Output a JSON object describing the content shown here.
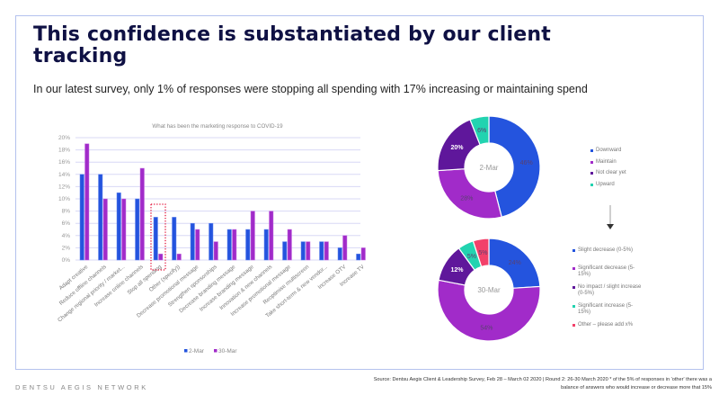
{
  "slide": {
    "title": "This confidence is substantiated by our client tracking",
    "subtitle": "In our latest survey, only 1% of responses were stopping all spending with 17% increasing or maintaining spend",
    "brand": "DENTSU AEGIS NETWORK",
    "source_line1": "Source: Dentsu Aegis Client & Leadership Survey, Feb 28 – March 02 2020 | Round 2: 26-30 March 2020 * of the 5% of responses in 'other' there was a",
    "source_line2": "balance of answers who would increase or decrease more that 15%",
    "highlight_category": "Stop all spending"
  },
  "colors": {
    "blue": "#2454de",
    "purple": "#a12bc9",
    "dark_purple": "#5f179b",
    "teal": "#22d3b0",
    "pink": "#f2416a",
    "grid": "#d8d8f6",
    "highlight": "#e3173d"
  },
  "chart_data": [
    {
      "type": "bar",
      "title": "What has been the marketing response to COVID-19",
      "xlabel": "",
      "ylabel": "",
      "ylim": [
        0,
        20
      ],
      "yticks": [
        "0%",
        "2%",
        "4%",
        "6%",
        "8%",
        "10%",
        "12%",
        "14%",
        "16%",
        "18%",
        "20%"
      ],
      "grid": true,
      "legend_position": "bottom",
      "categories": [
        "Adapt creative",
        "Reduce offline channels",
        "Change regional priority / market...",
        "Increase online channels",
        "Stop all spending",
        "Other (specify))",
        "Decrease promotional message",
        "Strengthen sponsorships",
        "Decrease branding message",
        "Increase branding message",
        "Innovation & new channels",
        "Increase promotional message",
        "Reoptimise multiscreen",
        "Take short-term & new vendor...",
        "Increase OTV",
        "Increase TV"
      ],
      "series": [
        {
          "name": "2-Mar",
          "color": "#2454de",
          "values": [
            14,
            14,
            11,
            10,
            7,
            7,
            6,
            6,
            5,
            5,
            5,
            3,
            3,
            3,
            2,
            1
          ]
        },
        {
          "name": "30-Mar",
          "color": "#a12bc9",
          "values": [
            19,
            10,
            10,
            15,
            1,
            1,
            5,
            3,
            5,
            8,
            8,
            5,
            3,
            3,
            4,
            2
          ]
        }
      ]
    },
    {
      "type": "pie",
      "center_label": "2-Mar",
      "labels": [
        "Downward",
        "Maintain",
        "Not clear yet",
        "Upward"
      ],
      "values": [
        46,
        28,
        20,
        6
      ],
      "value_labels": [
        "46%",
        "28%",
        "20%",
        "6%"
      ],
      "colors": [
        "#2454de",
        "#a12bc9",
        "#5f179b",
        "#22d3b0"
      ],
      "legend_position": "right"
    },
    {
      "type": "pie",
      "center_label": "30-Mar",
      "labels": [
        "Slight decrease (0-5%)",
        "Significant decrease (5-15%)",
        "No impact / slight increase (0-5%)",
        "Significant increase (5-15%)",
        "Other – please add x%"
      ],
      "values": [
        24,
        54,
        12,
        5,
        5
      ],
      "value_labels": [
        "24%",
        "54%",
        "12%",
        "5%",
        "5%"
      ],
      "colors": [
        "#2454de",
        "#a12bc9",
        "#5f179b",
        "#22d3b0",
        "#f2416a"
      ],
      "legend_position": "right"
    }
  ]
}
